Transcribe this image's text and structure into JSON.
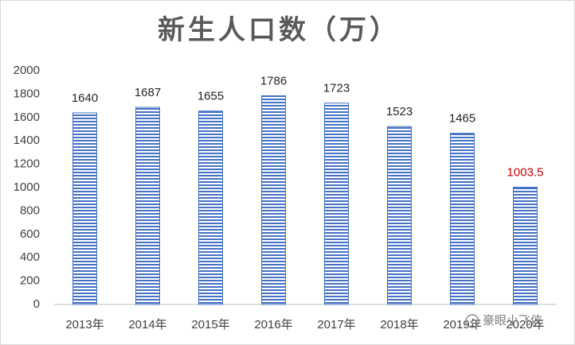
{
  "chart_data": {
    "type": "bar",
    "title": "新生人口数（万）",
    "categories": [
      "2013年",
      "2014年",
      "2015年",
      "2016年",
      "2017年",
      "2018年",
      "2019年",
      "2020年"
    ],
    "values": [
      1640,
      1687,
      1655,
      1786,
      1723,
      1523,
      1465,
      1003.5
    ],
    "value_label_colors": [
      "#262626",
      "#262626",
      "#262626",
      "#262626",
      "#262626",
      "#262626",
      "#262626",
      "#c00000"
    ],
    "color": "#4472c4",
    "ylim": [
      0,
      2000
    ],
    "yticks": [
      0,
      200,
      400,
      600,
      800,
      1000,
      1200,
      1400,
      1600,
      1800,
      2000
    ],
    "grid": false
  },
  "watermark": "豪眼小飞侠"
}
